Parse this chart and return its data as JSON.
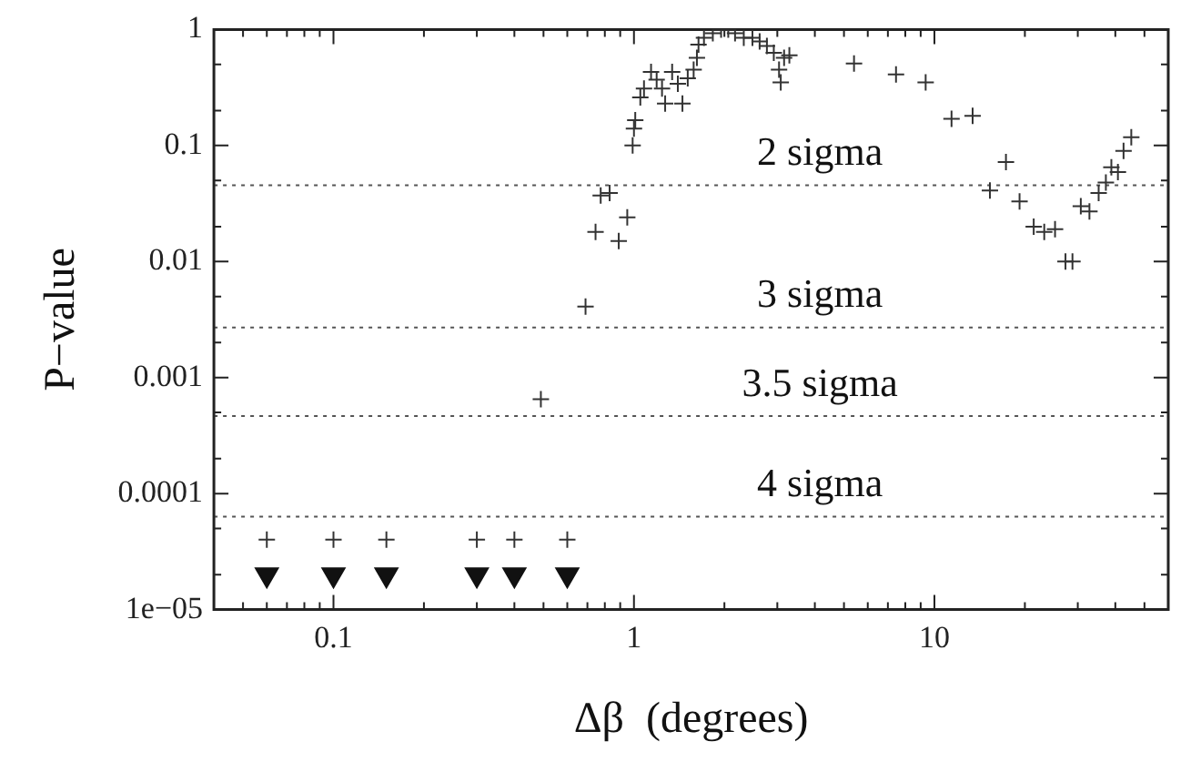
{
  "chart_data": {
    "type": "scatter",
    "xlabel": "Δβ  (degrees)",
    "ylabel": "P−value",
    "log": "xy",
    "grid": false,
    "legend": false,
    "xlim": [
      0.04,
      60
    ],
    "ylim": [
      1e-05,
      1
    ],
    "xticks": [
      {
        "value": 0.05,
        "label": null
      },
      {
        "value": 0.06,
        "label": null
      },
      {
        "value": 0.07,
        "label": null
      },
      {
        "value": 0.08,
        "label": null
      },
      {
        "value": 0.09,
        "label": null
      },
      0.1,
      {
        "value": 0.2,
        "label": null
      },
      {
        "value": 0.3,
        "label": null
      },
      {
        "value": 0.4,
        "label": null
      },
      {
        "value": 0.5,
        "label": null
      },
      {
        "value": 0.6,
        "label": null
      },
      {
        "value": 0.7,
        "label": null
      },
      {
        "value": 0.8,
        "label": null
      },
      {
        "value": 0.9,
        "label": null
      },
      1,
      {
        "value": 2,
        "label": null
      },
      {
        "value": 3,
        "label": null
      },
      {
        "value": 4,
        "label": null
      },
      {
        "value": 5,
        "label": null
      },
      {
        "value": 6,
        "label": null
      },
      {
        "value": 7,
        "label": null
      },
      {
        "value": 8,
        "label": null
      },
      {
        "value": 9,
        "label": null
      },
      10,
      {
        "value": 20,
        "label": null
      },
      {
        "value": 30,
        "label": null
      },
      {
        "value": 40,
        "label": null
      },
      {
        "value": 50,
        "label": null
      }
    ],
    "yticks": [
      {
        "value": 1e-05,
        "label": "1e−05"
      },
      {
        "value": 2e-05,
        "label": null
      },
      {
        "value": 5e-05,
        "label": null
      },
      0.0001,
      {
        "value": 0.0002,
        "label": null
      },
      {
        "value": 0.0005,
        "label": null
      },
      0.001,
      {
        "value": 0.002,
        "label": null
      },
      {
        "value": 0.005,
        "label": null
      },
      0.01,
      {
        "value": 0.02,
        "label": null
      },
      {
        "value": 0.05,
        "label": null
      },
      0.1,
      {
        "value": 0.2,
        "label": null
      },
      {
        "value": 0.5,
        "label": null
      },
      1
    ],
    "ref_lines": [
      {
        "axis": "y",
        "value": 0.0455,
        "label": "2 sigma",
        "color": "#555555",
        "line_style": "dotted"
      },
      {
        "axis": "y",
        "value": 0.0027,
        "label": "3 sigma",
        "color": "#555555",
        "line_style": "dotted"
      },
      {
        "axis": "y",
        "value": 0.000465,
        "label": "3.5 sigma",
        "color": "#555555",
        "line_style": "dotted"
      },
      {
        "axis": "y",
        "value": 6.33e-05,
        "label": "4 sigma",
        "color": "#555555",
        "line_style": "dotted"
      }
    ],
    "series": [
      {
        "color": "#333333",
        "marker": "cross",
        "x": [
          0.49,
          0.69,
          0.745,
          0.775,
          0.83,
          0.89,
          0.95,
          0.99,
          1.0,
          1.01,
          1.05,
          1.08,
          1.14,
          1.19,
          1.24,
          1.27,
          1.34,
          1.4,
          1.45,
          1.51,
          1.58,
          1.62,
          1.64,
          1.71,
          1.83,
          1.95,
          2.06,
          2.17,
          2.32,
          2.48,
          2.62,
          2.77,
          2.92,
          3.04,
          3.08,
          3.16,
          3.29,
          5.4,
          7.45,
          9.35,
          11.4,
          13.4,
          15.3,
          17.3,
          19.2,
          21.4,
          23.2,
          25.2,
          27.3,
          28.8,
          30.7,
          32.8,
          35.2,
          37.2,
          38.8,
          40.8,
          42.6,
          45.2
        ],
        "values": [
          0.00065,
          0.0041,
          0.018,
          0.037,
          0.039,
          0.015,
          0.024,
          0.1,
          0.14,
          0.165,
          0.26,
          0.31,
          0.43,
          0.37,
          0.31,
          0.23,
          0.43,
          0.34,
          0.23,
          0.38,
          0.45,
          0.57,
          0.74,
          0.85,
          0.93,
          1.0,
          1.0,
          0.93,
          0.85,
          0.85,
          0.79,
          0.72,
          0.63,
          0.45,
          0.35,
          0.57,
          0.6,
          0.51,
          0.41,
          0.35,
          0.17,
          0.18,
          0.041,
          0.072,
          0.033,
          0.02,
          0.018,
          0.019,
          0.01,
          0.01,
          0.03,
          0.027,
          0.039,
          0.048,
          0.065,
          0.059,
          0.09,
          0.118
        ]
      },
      {
        "color": "#333333",
        "marker": "cross",
        "x": [
          0.06,
          0.1,
          0.15,
          0.3,
          0.4,
          0.6
        ],
        "values": [
          4e-05,
          4e-05,
          4e-05,
          4e-05,
          4e-05,
          4e-05
        ]
      },
      {
        "color": "#111111",
        "marker": "triangle",
        "x": [
          0.06,
          0.1,
          0.15,
          0.3,
          0.4,
          0.6
        ],
        "values": [
          2e-05,
          2e-05,
          2e-05,
          2e-05,
          2e-05,
          2e-05
        ]
      }
    ]
  }
}
